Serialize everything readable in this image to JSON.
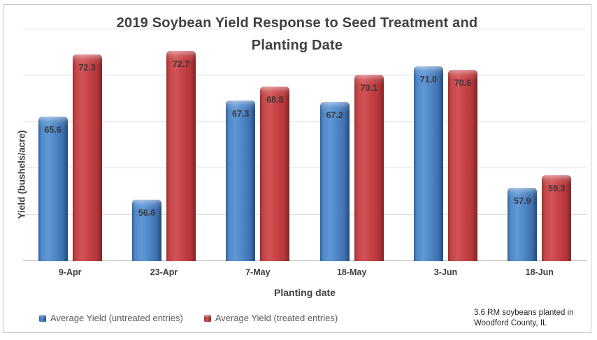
{
  "title": {
    "line1": "2019 Soybean Yield Response to Seed Treatment and",
    "line2": "Planting Date"
  },
  "note": {
    "line1": "3.6 RM soybeans planted in",
    "line2": "Woodford County, IL"
  },
  "chart_data": {
    "type": "bar",
    "title": "2019 Soybean Yield Response to Seed Treatment and Planting Date",
    "categories": [
      "9-Apr",
      "23-Apr",
      "7-May",
      "18-May",
      "3-Jun",
      "18-Jun"
    ],
    "series": [
      {
        "name": "Average Yield (untreated entries)",
        "key": "untreated",
        "color": "#4A85C8",
        "values": [
          65.6,
          56.6,
          67.3,
          67.2,
          71.0,
          57.9
        ]
      },
      {
        "name": "Average Yield (treated entries)",
        "key": "treated",
        "color": "#C64144",
        "values": [
          72.3,
          72.7,
          68.8,
          70.1,
          70.6,
          59.3
        ]
      }
    ],
    "xlabel": "Planting date",
    "ylabel": "Yield (bushels/acre)",
    "ylim": [
      50,
      75
    ],
    "y_major_unit": 5,
    "grid": true,
    "y_tick_labels_visible": false,
    "data_labels": true,
    "data_label_decimals": 1,
    "legend_position": "bottom-left",
    "annotation": "3.6 RM soybeans planted in Woodford County, IL"
  },
  "colors": {
    "gridline": "#D9D9D9",
    "axis_line": "#BFBFBF",
    "title_text": "#404040",
    "legend_text": "#595959",
    "data_label_text": "#3A3A3A",
    "note_text": "#262626",
    "untreated_bar": "#4A85C8",
    "treated_bar": "#C64144"
  }
}
